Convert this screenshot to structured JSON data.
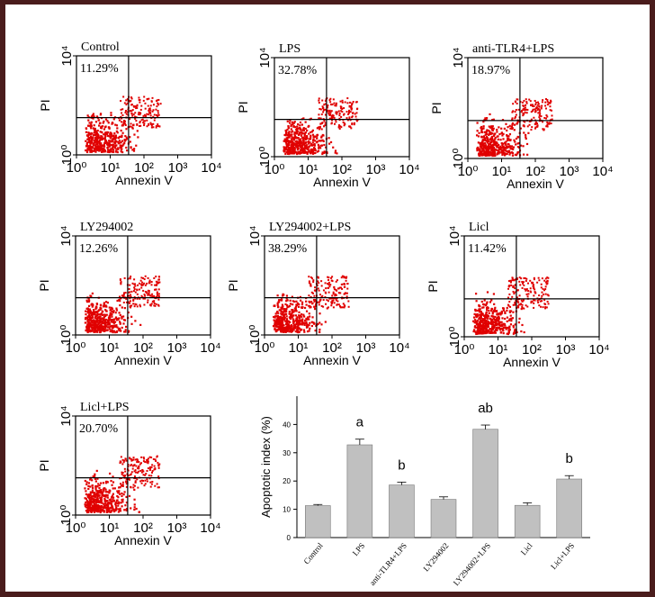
{
  "chart_data": [
    {
      "type": "flow",
      "title": "Control",
      "annotation": "11.29%",
      "xlabel": "Annexin V",
      "ylabel": "PI",
      "log": true,
      "xlim": [
        1,
        10000
      ],
      "ylim": [
        1,
        10000
      ],
      "xticks": [
        {
          "value": 1,
          "label": "10⁰"
        },
        {
          "value": 10,
          "label": "10¹"
        },
        {
          "value": 100,
          "label": "10²"
        },
        {
          "value": 1000,
          "label": "10³"
        },
        {
          "value": 10000,
          "label": "10⁴"
        }
      ],
      "yticks": [
        {
          "value": 1,
          "label": "10⁰"
        },
        {
          "value": 10000,
          "label": "10⁴"
        }
      ],
      "quadrant": {
        "x": 35,
        "y": 32
      },
      "color": "#e00000"
    },
    {
      "type": "flow",
      "title": "LPS",
      "annotation": "32.78%",
      "xlabel": "Annexin V",
      "ylabel": "PI",
      "log": true,
      "xlim": [
        1,
        10000
      ],
      "ylim": [
        1,
        10000
      ],
      "xticks": [
        {
          "value": 1,
          "label": "10⁰"
        },
        {
          "value": 10,
          "label": "10¹"
        },
        {
          "value": 100,
          "label": "10²"
        },
        {
          "value": 1000,
          "label": "10³"
        },
        {
          "value": 10000,
          "label": "10⁴"
        }
      ],
      "yticks": [
        {
          "value": 1,
          "label": "10⁰"
        },
        {
          "value": 10000,
          "label": "10⁴"
        }
      ],
      "quadrant": {
        "x": 35,
        "y": 32
      },
      "color": "#e00000"
    },
    {
      "type": "flow",
      "title": "anti-TLR4+LPS",
      "annotation": "18.97%",
      "xlabel": "Annexin V",
      "ylabel": "PI",
      "log": true,
      "xlim": [
        1,
        10000
      ],
      "ylim": [
        1,
        10000
      ],
      "xticks": [
        {
          "value": 1,
          "label": "10⁰"
        },
        {
          "value": 10,
          "label": "10¹"
        },
        {
          "value": 100,
          "label": "10²"
        },
        {
          "value": 1000,
          "label": "10³"
        },
        {
          "value": 10000,
          "label": "10⁴"
        }
      ],
      "yticks": [
        {
          "value": 1,
          "label": "10⁰"
        },
        {
          "value": 10000,
          "label": "10⁴"
        }
      ],
      "quadrant": {
        "x": 35,
        "y": 32
      },
      "color": "#e00000"
    },
    {
      "type": "flow",
      "title": "LY294002",
      "annotation": "12.26%",
      "xlabel": "Annexin V",
      "ylabel": "PI",
      "log": true,
      "xlim": [
        1,
        10000
      ],
      "ylim": [
        1,
        10000
      ],
      "xticks": [
        {
          "value": 1,
          "label": "10⁰"
        },
        {
          "value": 10,
          "label": "10¹"
        },
        {
          "value": 100,
          "label": "10²"
        },
        {
          "value": 1000,
          "label": "10³"
        },
        {
          "value": 10000,
          "label": "10⁴"
        }
      ],
      "yticks": [
        {
          "value": 1,
          "label": "10⁰"
        },
        {
          "value": 10000,
          "label": "10⁴"
        }
      ],
      "quadrant": {
        "x": 35,
        "y": 32
      },
      "color": "#e00000"
    },
    {
      "type": "flow",
      "title": "LY294002+LPS",
      "annotation": "38.29%",
      "xlabel": "Annexin V",
      "ylabel": "PI",
      "log": true,
      "xlim": [
        1,
        10000
      ],
      "ylim": [
        1,
        10000
      ],
      "xticks": [
        {
          "value": 1,
          "label": "10⁰"
        },
        {
          "value": 10,
          "label": "10¹"
        },
        {
          "value": 100,
          "label": "10²"
        },
        {
          "value": 1000,
          "label": "10³"
        },
        {
          "value": 10000,
          "label": "10⁴"
        }
      ],
      "yticks": [
        {
          "value": 1,
          "label": "10⁰"
        },
        {
          "value": 10000,
          "label": "10⁴"
        }
      ],
      "quadrant": {
        "x": 35,
        "y": 32
      },
      "color": "#e00000"
    },
    {
      "type": "flow",
      "title": "Licl",
      "annotation": "11.42%",
      "xlabel": "Annexin V",
      "ylabel": "PI",
      "log": true,
      "xlim": [
        1,
        10000
      ],
      "ylim": [
        1,
        10000
      ],
      "xticks": [
        {
          "value": 1,
          "label": "10⁰"
        },
        {
          "value": 10,
          "label": "10¹"
        },
        {
          "value": 100,
          "label": "10²"
        },
        {
          "value": 1000,
          "label": "10³"
        },
        {
          "value": 10000,
          "label": "10⁴"
        }
      ],
      "yticks": [
        {
          "value": 1,
          "label": "10⁰"
        },
        {
          "value": 10000,
          "label": "10⁴"
        }
      ],
      "quadrant": {
        "x": 35,
        "y": 32
      },
      "color": "#e00000"
    },
    {
      "type": "flow",
      "title": "Licl+LPS",
      "annotation": "20.70%",
      "xlabel": "Annexin V",
      "ylabel": "PI",
      "log": true,
      "xlim": [
        1,
        10000
      ],
      "ylim": [
        1,
        10000
      ],
      "xticks": [
        {
          "value": 1,
          "label": "10⁰"
        },
        {
          "value": 10,
          "label": "10¹"
        },
        {
          "value": 100,
          "label": "10²"
        },
        {
          "value": 1000,
          "label": "10³"
        },
        {
          "value": 10000,
          "label": "10⁴"
        }
      ],
      "yticks": [
        {
          "value": 1,
          "label": "10⁰"
        },
        {
          "value": 10000,
          "label": "10⁴"
        }
      ],
      "quadrant": {
        "x": 35,
        "y": 32
      },
      "color": "#e00000"
    },
    {
      "type": "bar",
      "ylabel": "Apoptotic index (%)",
      "categories": [
        "Control",
        "LPS",
        "anti-TLR4+LPS",
        "LY294002",
        "LY294002+LPS",
        "Licl",
        "Licl+LPS"
      ],
      "values": [
        11.3,
        32.8,
        18.6,
        13.5,
        38.3,
        11.4,
        20.7
      ],
      "errors": [
        0.4,
        2,
        1,
        0.9,
        1.5,
        0.9,
        1.2
      ],
      "annotations": [
        null,
        "a",
        "b",
        null,
        "ab",
        null,
        "b"
      ],
      "ylim": [
        0,
        50
      ],
      "yticks": [
        0,
        10,
        20,
        30,
        40
      ],
      "color": "#c0c0c0"
    }
  ]
}
